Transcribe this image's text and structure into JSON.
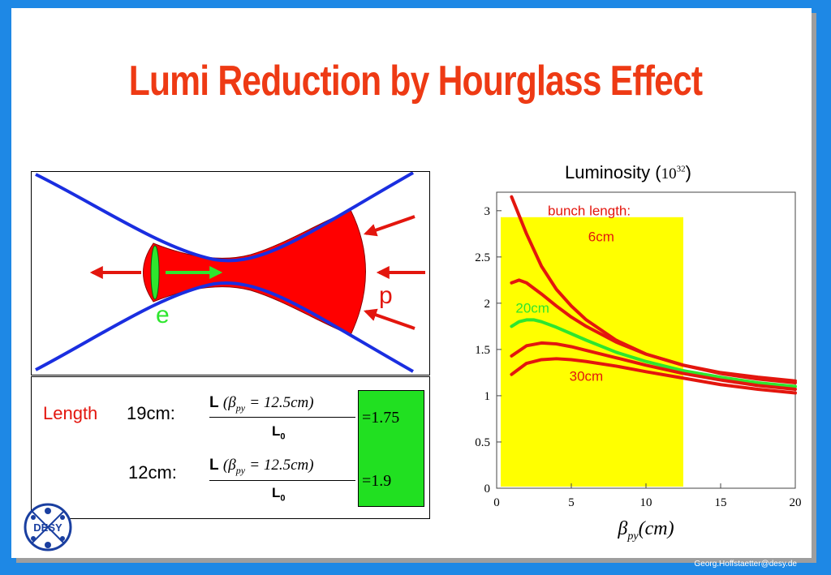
{
  "slide": {
    "title": "Lumi Reduction by Hourglass Effect",
    "footer": "Georg.Hoffstaetter@desy.de",
    "logo_text": "DESY"
  },
  "diagram": {
    "electron_label": "e",
    "proton_label": "p"
  },
  "formula": {
    "length_word": "Length",
    "row1_length": "19cm:",
    "row2_length": "12cm:",
    "numerator_L": "L",
    "numerator_expr": "(β",
    "numerator_sub": "py",
    "numerator_rest": "= 12.5cm)",
    "denominator_L": "L",
    "denominator_sub": "0",
    "row1_result": "=1.75",
    "row2_result": "=1.9"
  },
  "chart_data": {
    "type": "line",
    "title_prefix": "Luminosity (",
    "title_base": "10",
    "title_exp": "32",
    "title_suffix": ")",
    "xlabel_symbol": "β",
    "xlabel_sub": "py",
    "xlabel_unit": "(cm)",
    "xlim": [
      0,
      20
    ],
    "ylim": [
      0,
      3.2
    ],
    "xticks": [
      0,
      5,
      10,
      15,
      20
    ],
    "yticks": [
      0,
      0.5,
      1,
      1.5,
      2,
      2.5,
      3
    ],
    "ytick_labels": [
      "0",
      "0.5",
      "1",
      "1.5",
      "2",
      "2.5",
      "3"
    ],
    "highlight_region_x": [
      0,
      12.5
    ],
    "highlight_color": "#ffff00",
    "annotations": [
      "bunch length:",
      "6cm",
      "20cm",
      "30cm"
    ],
    "series": [
      {
        "color": "#e3160e",
        "x": [
          1,
          2,
          3,
          4,
          5,
          6,
          8,
          10,
          12.5,
          15,
          17.5,
          20
        ],
        "values": [
          3.15,
          2.75,
          2.4,
          2.15,
          1.97,
          1.82,
          1.6,
          1.45,
          1.33,
          1.25,
          1.2,
          1.16
        ]
      },
      {
        "color": "#e3160e",
        "x": [
          1,
          1.5,
          2,
          3,
          4,
          5,
          6,
          8,
          10,
          12.5,
          15,
          17.5,
          20
        ],
        "values": [
          2.22,
          2.25,
          2.22,
          2.1,
          1.97,
          1.85,
          1.75,
          1.58,
          1.45,
          1.33,
          1.24,
          1.18,
          1.14
        ]
      },
      {
        "color": "#2ee62e",
        "x": [
          1,
          1.5,
          2,
          2.5,
          3,
          4,
          5,
          6,
          8,
          10,
          12.5,
          15,
          17.5,
          20
        ],
        "values": [
          1.75,
          1.8,
          1.82,
          1.82,
          1.8,
          1.74,
          1.67,
          1.6,
          1.47,
          1.37,
          1.27,
          1.2,
          1.14,
          1.1
        ]
      },
      {
        "color": "#e3160e",
        "x": [
          1,
          2,
          3,
          4,
          5,
          6,
          8,
          10,
          12.5,
          15,
          17.5,
          20
        ],
        "values": [
          1.43,
          1.54,
          1.57,
          1.56,
          1.53,
          1.49,
          1.41,
          1.33,
          1.24,
          1.17,
          1.11,
          1.07
        ]
      },
      {
        "color": "#e3160e",
        "x": [
          1,
          2,
          3,
          4,
          5,
          6,
          8,
          10,
          12.5,
          15,
          17.5,
          20
        ],
        "values": [
          1.23,
          1.35,
          1.39,
          1.4,
          1.39,
          1.37,
          1.32,
          1.26,
          1.19,
          1.12,
          1.07,
          1.03
        ]
      }
    ]
  }
}
